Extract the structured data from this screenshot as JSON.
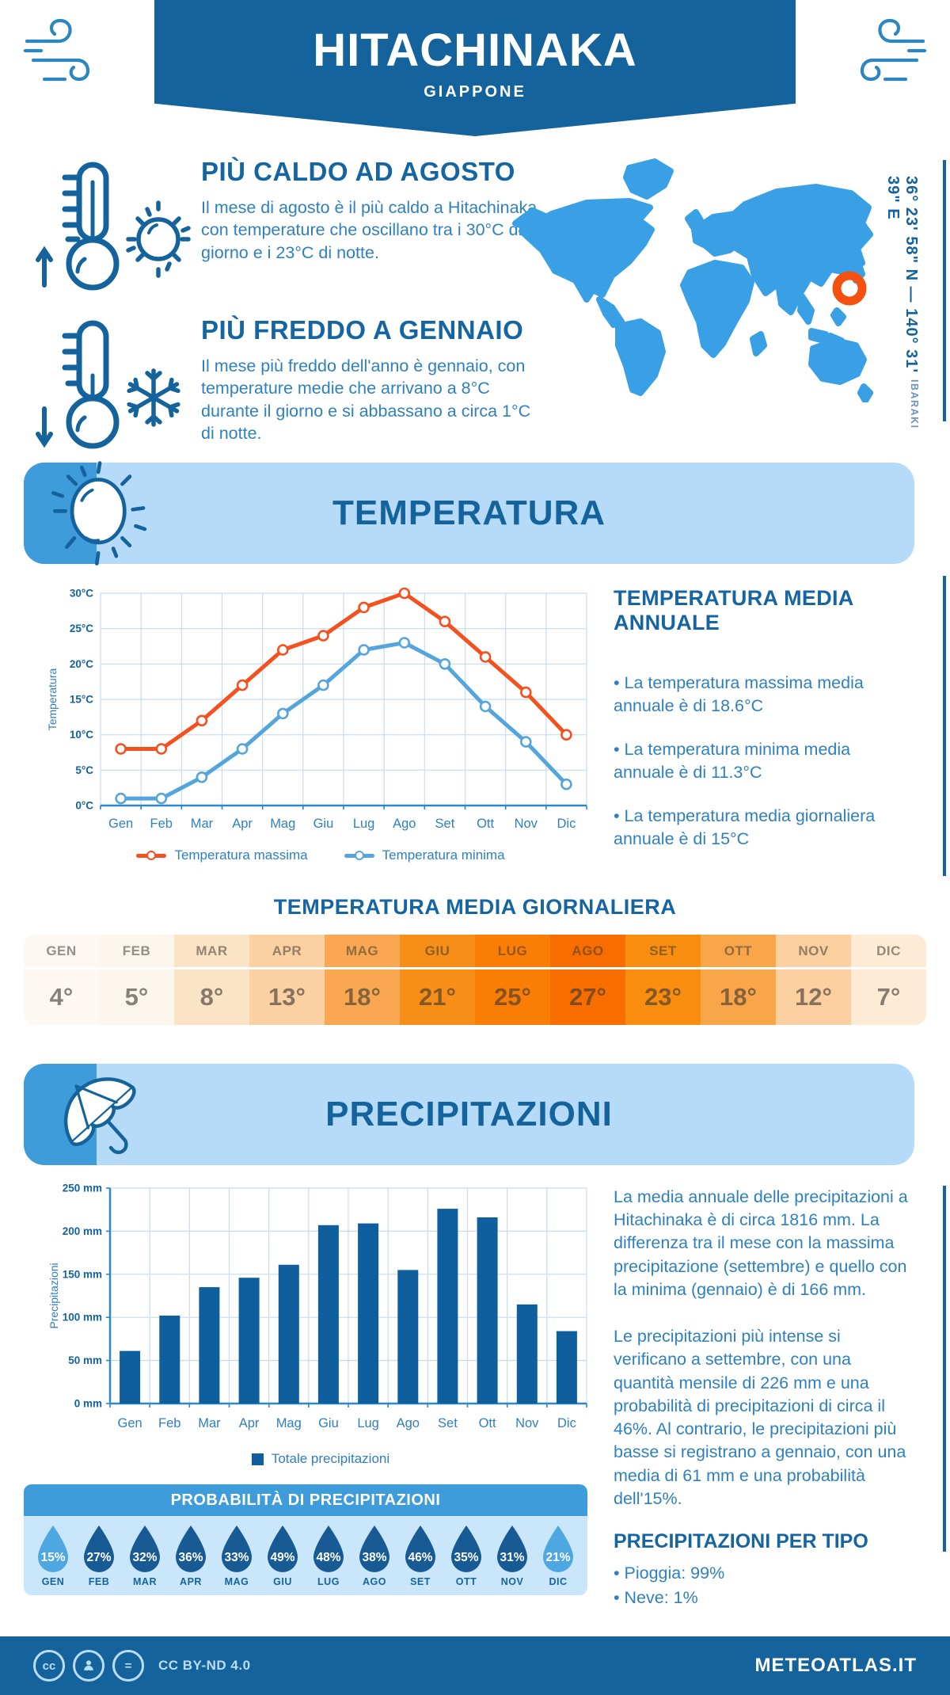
{
  "header": {
    "title": "HITACHINAKA",
    "subtitle": "GIAPPONE"
  },
  "highlights": [
    {
      "title": "PIÙ CALDO AD AGOSTO",
      "text": "Il mese di agosto è il più caldo a Hitachinaka, con temperature che oscillano tra i 30°C di giorno e i 23°C di notte."
    },
    {
      "title": "PIÙ FREDDO A GENNAIO",
      "text": "Il mese più freddo dell'anno è gennaio, con temperature medie che arrivano a 8°C durante il giorno e si abbassano a circa 1°C di notte."
    }
  ],
  "map": {
    "coordinates": "36° 23' 58\" N — 140° 31' 39\" E",
    "region": "IBARAKI"
  },
  "temperature": {
    "banner_title": "TEMPERATURA",
    "annual_heading": "TEMPERATURA MEDIA ANNUALE",
    "annual_bullets": [
      "• La temperatura massima media annuale è di 18.6°C",
      "• La temperatura minima media annuale è di 11.3°C",
      "• La temperatura media giornaliera annuale è di 15°C"
    ],
    "daily_heading": "TEMPERATURA MEDIA GIORNALIERA",
    "daily": {
      "months": [
        "GEN",
        "FEB",
        "MAR",
        "APR",
        "MAG",
        "GIU",
        "LUG",
        "AGO",
        "SET",
        "OTT",
        "NOV",
        "DIC"
      ],
      "values": [
        "4°",
        "5°",
        "8°",
        "13°",
        "18°",
        "21°",
        "25°",
        "27°",
        "23°",
        "18°",
        "12°",
        "7°"
      ],
      "cell_colors": [
        "#FDF8F1",
        "#FDF6EC",
        "#FBE3C6",
        "#FBD0A2",
        "#F9A851",
        "#F78E17",
        "#FA7D06",
        "#F76D00",
        "#F88D10",
        "#F9A64B",
        "#FBCF9F",
        "#FDEBD6"
      ]
    }
  },
  "precipitation": {
    "banner_title": "PRECIPITAZIONI",
    "paragraphs": [
      "La media annuale delle precipitazioni a Hitachinaka è di circa 1816 mm. La differenza tra il mese con la massima precipitazione (settembre) e quello con la minima (gennaio) è di 166 mm.",
      "Le precipitazioni più intense si verificano a settembre, con una quantità mensile di 226 mm e una probabilità di precipitazioni di circa il 46%. Al contrario, le precipitazioni più basse si registrano a gennaio, con una media di 61 mm e una probabilità dell'15%."
    ],
    "probability": {
      "title": "PROBABILITÀ DI PRECIPITAZIONI",
      "months": [
        "GEN",
        "FEB",
        "MAR",
        "APR",
        "MAG",
        "GIU",
        "LUG",
        "AGO",
        "SET",
        "OTT",
        "NOV",
        "DIC"
      ],
      "values": [
        "15%",
        "27%",
        "32%",
        "36%",
        "33%",
        "49%",
        "48%",
        "38%",
        "46%",
        "35%",
        "31%",
        "21%"
      ],
      "light_months": [
        0,
        11
      ],
      "drop_dark": "#175A94",
      "drop_light": "#4FA7E2"
    },
    "per_type": {
      "heading": "PRECIPITAZIONI PER TIPO",
      "items": [
        "• Pioggia: 99%",
        "• Neve: 1%"
      ]
    }
  },
  "chart_data": [
    {
      "type": "line",
      "categories": [
        "Gen",
        "Feb",
        "Mar",
        "Apr",
        "Mag",
        "Giu",
        "Lug",
        "Ago",
        "Set",
        "Ott",
        "Nov",
        "Dic"
      ],
      "series": [
        {
          "name": "Temperatura massima",
          "color": "#F4511E",
          "values": [
            8,
            8,
            12,
            17,
            22,
            24,
            28,
            30,
            26,
            21,
            16,
            10
          ]
        },
        {
          "name": "Temperatura minima",
          "color": "#55A5DC",
          "values": [
            1,
            1,
            4,
            8,
            13,
            17,
            22,
            23,
            20,
            14,
            9,
            3
          ]
        }
      ],
      "ylabel": "Temperatura",
      "ylim": [
        0,
        30
      ],
      "ytick_step": 5,
      "ytick_suffix": "°C",
      "grid": true,
      "legend_position": "bottom"
    },
    {
      "type": "bar",
      "categories": [
        "Gen",
        "Feb",
        "Mar",
        "Apr",
        "Mag",
        "Giu",
        "Lug",
        "Ago",
        "Set",
        "Ott",
        "Nov",
        "Dic"
      ],
      "values": [
        61,
        102,
        135,
        146,
        161,
        207,
        209,
        155,
        226,
        216,
        115,
        84
      ],
      "ylabel": "Precipitazioni",
      "ylim": [
        0,
        250
      ],
      "ytick_step": 50,
      "ytick_suffix": " mm",
      "legend": "Totale precipitazioni",
      "color": "#0F5F9F",
      "grid": true,
      "legend_position": "bottom"
    }
  ],
  "footer": {
    "license": "CC BY-ND 4.0",
    "site": "METEOATLAS.IT"
  },
  "colors": {
    "brand": "#15639C",
    "heading": "#1565A3",
    "body_text": "#2E80BE",
    "medium_blue": "#3E9CDA",
    "pale_banner": "#B5DBF8",
    "pale_body": "#C9E6FB",
    "map_blue": "#3AA0E6",
    "marker_orange": "#F4500F",
    "line_max": "#F4511E",
    "line_min": "#55A5DC",
    "bar_blue": "#0F5F9F"
  }
}
